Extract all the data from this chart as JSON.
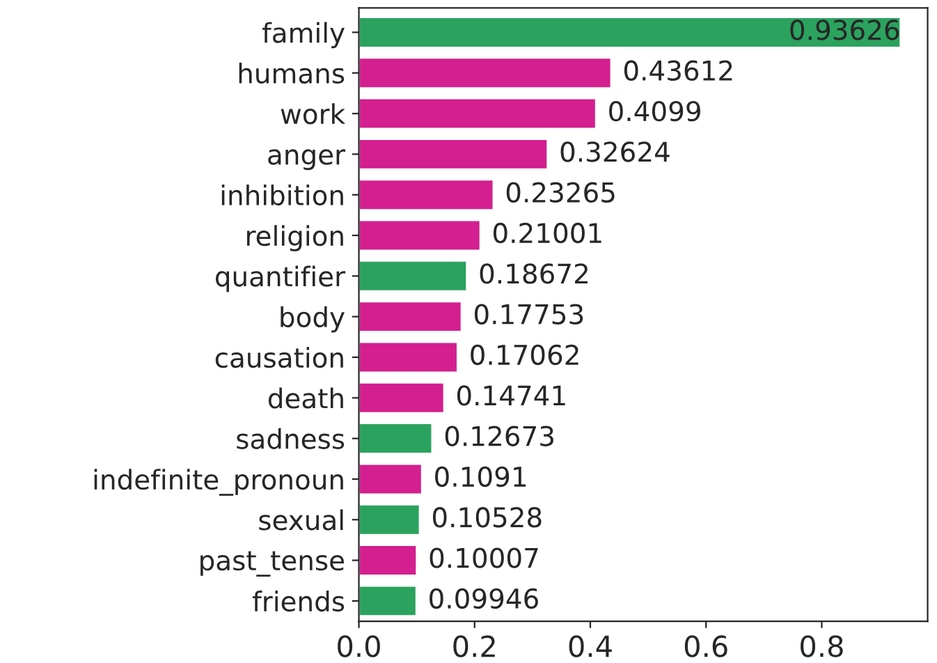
{
  "chart_data": {
    "type": "bar",
    "orientation": "horizontal",
    "categories": [
      "family",
      "humans",
      "work",
      "anger",
      "inhibition",
      "religion",
      "quantifier",
      "body",
      "causation",
      "death",
      "sadness",
      "indefinite_pronoun",
      "sexual",
      "past_tense",
      "friends"
    ],
    "values": [
      0.93626,
      0.43612,
      0.4099,
      0.32624,
      0.23265,
      0.21001,
      0.18672,
      0.17753,
      0.17062,
      0.14741,
      0.12673,
      0.1091,
      0.10528,
      0.10007,
      0.09946
    ],
    "colors": [
      "#2ca25f",
      "#d31f8f",
      "#d31f8f",
      "#d31f8f",
      "#d31f8f",
      "#d31f8f",
      "#2ca25f",
      "#d31f8f",
      "#d31f8f",
      "#d31f8f",
      "#2ca25f",
      "#d31f8f",
      "#2ca25f",
      "#d31f8f",
      "#2ca25f"
    ],
    "xlim": [
      0,
      0.983
    ],
    "xticks": [
      {
        "value": 0,
        "label": "0.0"
      },
      0.2,
      0.4,
      0.6,
      0.8
    ],
    "data_labels": true,
    "grid": false,
    "legend": false
  }
}
